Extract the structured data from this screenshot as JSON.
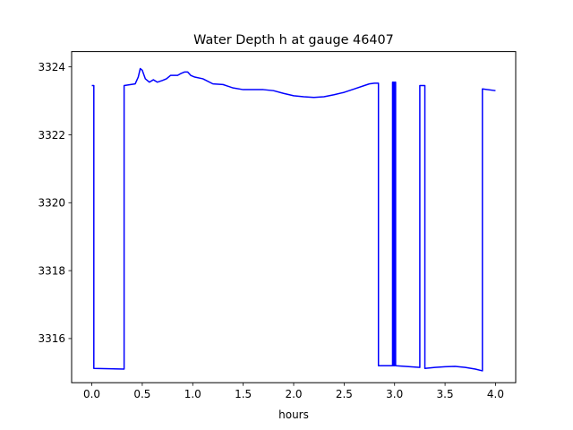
{
  "chart_data": {
    "type": "line",
    "title": "Water Depth h at gauge 46407",
    "xlabel": "hours",
    "ylabel": "",
    "xlim": [
      -0.2,
      4.2
    ],
    "ylim": [
      3314.7,
      3324.45
    ],
    "xticks": [
      0.0,
      0.5,
      1.0,
      1.5,
      2.0,
      2.5,
      3.0,
      3.5,
      4.0
    ],
    "xtick_labels": [
      "0.0",
      "0.5",
      "1.0",
      "1.5",
      "2.0",
      "2.5",
      "3.0",
      "3.5",
      "4.0"
    ],
    "yticks": [
      3316,
      3318,
      3320,
      3322,
      3324
    ],
    "ytick_labels": [
      "3316",
      "3318",
      "3320",
      "3322",
      "3324"
    ],
    "grid": false,
    "series": [
      {
        "color": "#0000ff",
        "x": [
          0.0,
          0.02,
          0.02,
          0.32,
          0.32,
          0.43,
          0.46,
          0.48,
          0.5,
          0.53,
          0.57,
          0.61,
          0.65,
          0.7,
          0.74,
          0.78,
          0.85,
          0.88,
          0.92,
          0.95,
          0.98,
          1.02,
          1.1,
          1.2,
          1.3,
          1.4,
          1.5,
          1.6,
          1.7,
          1.8,
          1.9,
          2.0,
          2.1,
          2.2,
          2.3,
          2.4,
          2.5,
          2.6,
          2.7,
          2.75,
          2.8,
          2.84,
          2.84,
          2.98,
          2.98,
          2.99,
          2.99,
          3.0,
          3.0,
          3.01,
          3.01,
          3.25,
          3.25,
          3.3,
          3.3,
          3.4,
          3.5,
          3.6,
          3.7,
          3.8,
          3.87,
          3.87,
          4.0
        ],
        "y": [
          3323.45,
          3323.45,
          3315.12,
          3315.1,
          3323.45,
          3323.5,
          3323.7,
          3323.95,
          3323.9,
          3323.65,
          3323.55,
          3323.62,
          3323.55,
          3323.6,
          3323.65,
          3323.75,
          3323.75,
          3323.8,
          3323.85,
          3323.85,
          3323.75,
          3323.7,
          3323.65,
          3323.5,
          3323.48,
          3323.38,
          3323.33,
          3323.33,
          3323.33,
          3323.3,
          3323.22,
          3323.15,
          3323.12,
          3323.1,
          3323.12,
          3323.18,
          3323.25,
          3323.35,
          3323.45,
          3323.5,
          3323.52,
          3323.52,
          3315.2,
          3315.2,
          3323.55,
          3323.55,
          3315.2,
          3315.2,
          3323.55,
          3323.55,
          3315.2,
          3315.15,
          3323.45,
          3323.45,
          3315.12,
          3315.15,
          3315.17,
          3315.18,
          3315.15,
          3315.1,
          3315.05,
          3323.35,
          3323.3
        ]
      }
    ]
  }
}
